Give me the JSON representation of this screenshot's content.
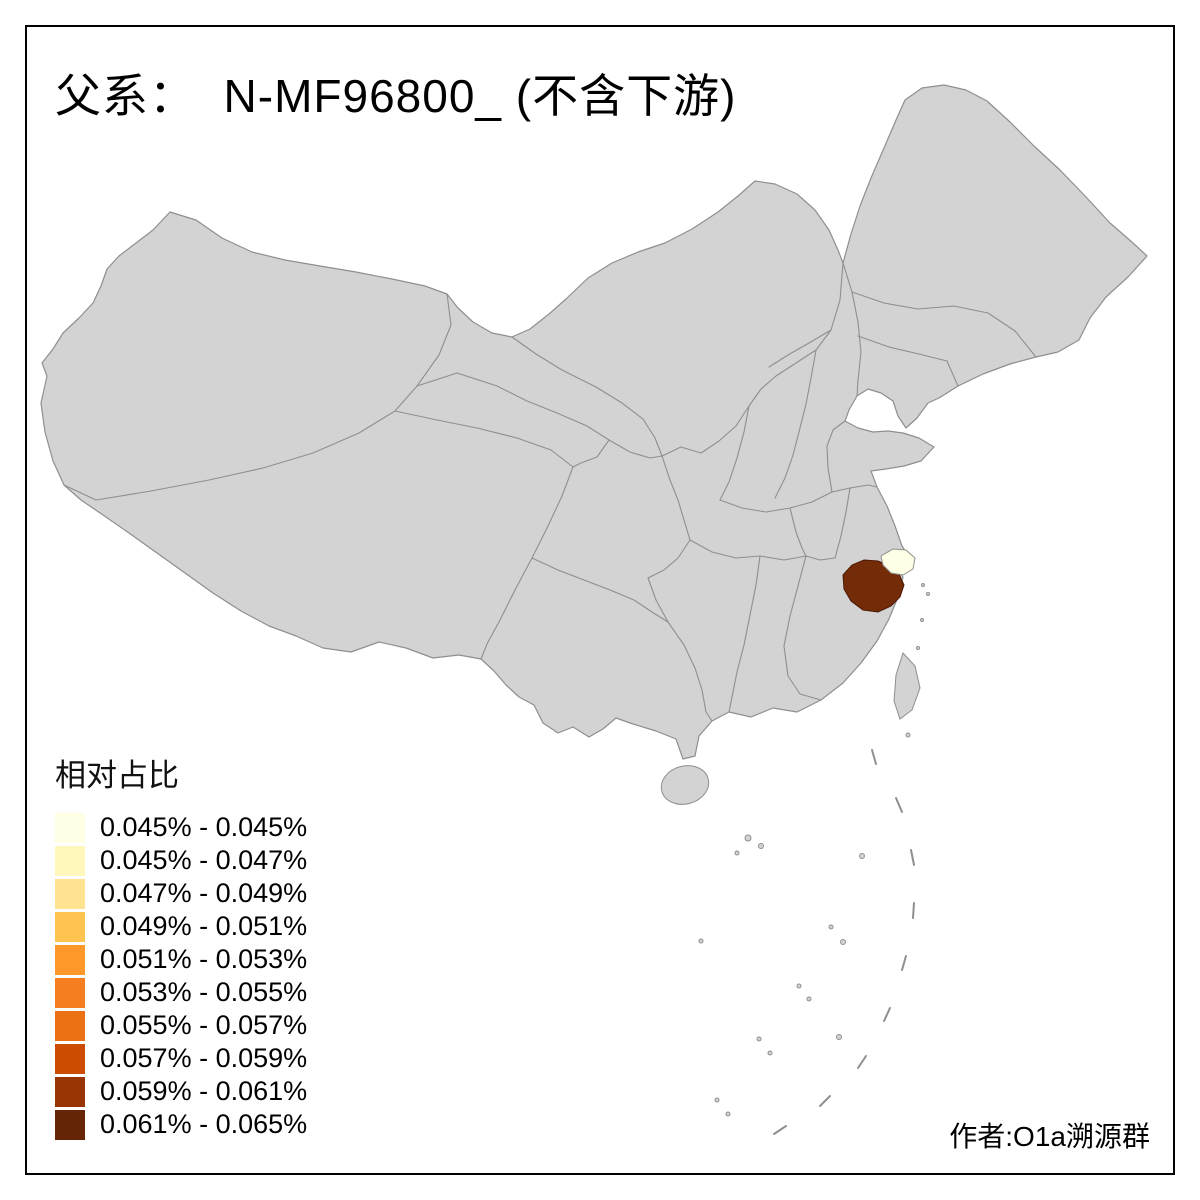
{
  "title": "父系：  N-MF96800_ (不含下游)",
  "legend": {
    "title": "相对占比",
    "items": [
      {
        "label": "0.045% - 0.045%",
        "color": "#FFFFE5"
      },
      {
        "label": "0.045% - 0.047%",
        "color": "#FFF7BC"
      },
      {
        "label": "0.047% - 0.049%",
        "color": "#FEE391"
      },
      {
        "label": "0.049% - 0.051%",
        "color": "#FEC44F"
      },
      {
        "label": "0.051% - 0.053%",
        "color": "#FE9929"
      },
      {
        "label": "0.053% - 0.055%",
        "color": "#F57E20"
      },
      {
        "label": "0.055% - 0.057%",
        "color": "#EC7014"
      },
      {
        "label": "0.057% - 0.059%",
        "color": "#CC4C02"
      },
      {
        "label": "0.059% - 0.061%",
        "color": "#993404"
      },
      {
        "label": "0.061% - 0.065%",
        "color": "#662506"
      }
    ]
  },
  "credit": "作者:O1a溯源群",
  "map": {
    "land_fill": "#D3D3D3",
    "border_stroke": "#8F8F8F",
    "dark_region_fill": "#742B08",
    "light_region_fill": "#FFFFE5"
  }
}
